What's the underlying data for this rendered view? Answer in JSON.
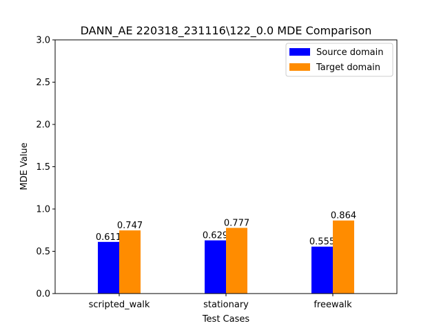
{
  "chart_data": {
    "type": "bar",
    "title": "DANN_AE 220318_231116\\122_0.0 MDE Comparison",
    "xlabel": "Test Cases",
    "ylabel": "MDE Value",
    "ylim": [
      0,
      3.0
    ],
    "yticks": [
      "0.0",
      "0.5",
      "1.0",
      "1.5",
      "2.0",
      "2.5",
      "3.0"
    ],
    "categories": [
      "scripted_walk",
      "stationary",
      "freewalk"
    ],
    "series": [
      {
        "name": "Source domain",
        "color": "#0000ff",
        "values": [
          0.611,
          0.629,
          0.555
        ],
        "labels": [
          "0.611",
          "0.629",
          "0.555"
        ]
      },
      {
        "name": "Target domain",
        "color": "#ff8c00",
        "values": [
          0.747,
          0.777,
          0.864
        ],
        "labels": [
          "0.747",
          "0.777",
          "0.864"
        ]
      }
    ],
    "legend": "top-right",
    "grid": false
  }
}
